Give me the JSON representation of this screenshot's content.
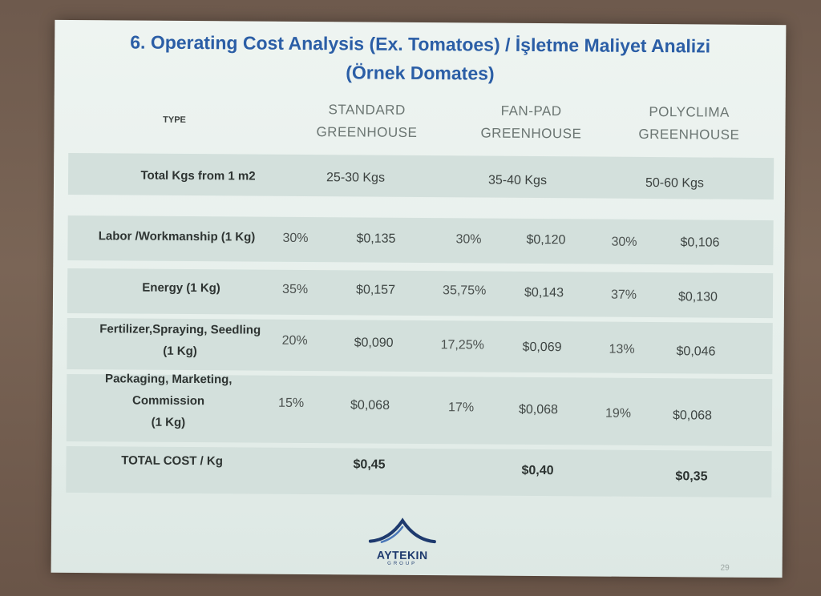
{
  "title_line1": "6. Operating Cost Analysis (Ex. Tomatoes) / İşletme Maliyet Analizi",
  "title_line2": "(Örnek Domates)",
  "header": {
    "type": "TYPE",
    "standard": [
      "STANDARD",
      "GREENHOUSE"
    ],
    "fanpad": [
      "FAN-PAD",
      "GREENHOUSE"
    ],
    "polyclima": [
      "POLYCLIMA",
      "GREENHOUSE"
    ]
  },
  "rows": {
    "total_kgs": {
      "label": "Total Kgs from 1 m2",
      "standard": "25-30 Kgs",
      "fanpad": "35-40 Kgs",
      "polyclima": "50-60 Kgs"
    },
    "labor": {
      "label": "Labor /Workmanship (1 Kg)",
      "std_pct": "30%",
      "std_val": "$0,135",
      "fan_pct": "30%",
      "fan_val": "$0,120",
      "poly_pct": "30%",
      "poly_val": "$0,106"
    },
    "energy": {
      "label": "Energy (1 Kg)",
      "std_pct": "35%",
      "std_val": "$0,157",
      "fan_pct": "35,75%",
      "fan_val": "$0,143",
      "poly_pct": "37%",
      "poly_val": "$0,130"
    },
    "fertilizer": {
      "label_l1": "Fertilizer,Spraying, Seedling",
      "label_l2": "(1 Kg)",
      "std_pct": "20%",
      "std_val": "$0,090",
      "fan_pct": "17,25%",
      "fan_val": "$0,069",
      "poly_pct": "13%",
      "poly_val": "$0,046"
    },
    "packaging": {
      "label_l1": "Packaging, Marketing,",
      "label_l2": "Commission",
      "label_l3": "(1 Kg)",
      "std_pct": "15%",
      "std_val": "$0,068",
      "fan_pct": "17%",
      "fan_val": "$0,068",
      "poly_pct": "19%",
      "poly_val": "$0,068"
    },
    "total_cost": {
      "label": "TOTAL COST / Kg",
      "standard": "$0,45",
      "fanpad": "$0,40",
      "polyclima": "$0,35"
    }
  },
  "logo": {
    "name": "AYTEKIN",
    "sub": "GROUP"
  },
  "page_number": "29"
}
